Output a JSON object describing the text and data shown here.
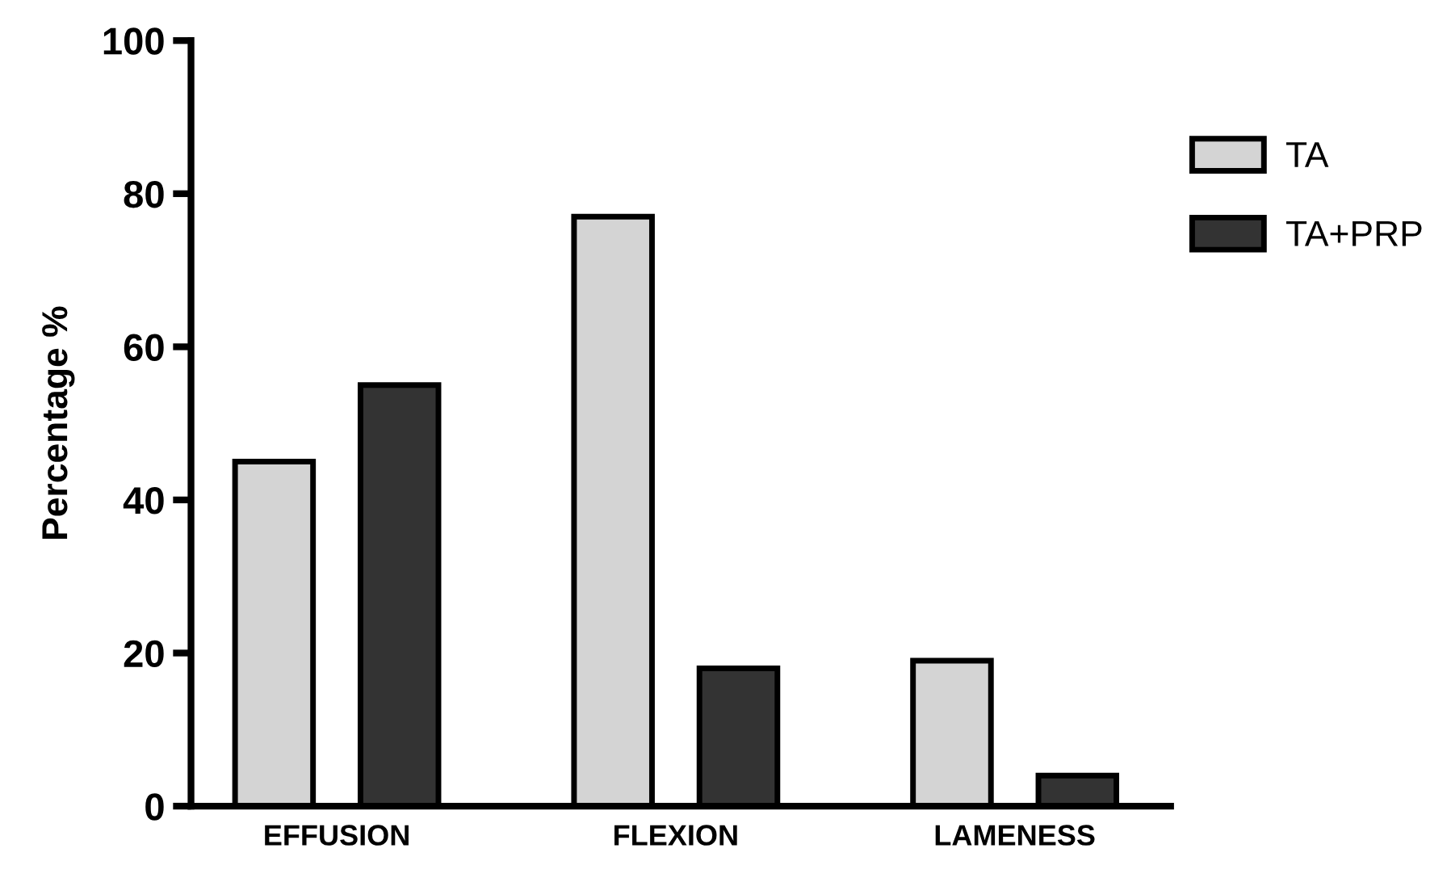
{
  "chart_data": {
    "type": "bar",
    "ylabel": "Percentage %",
    "categories": [
      "EFFUSION",
      "FLEXION",
      "LAMENESS"
    ],
    "series": [
      {
        "name": "TA",
        "color": "#d4d4d4",
        "values": [
          45,
          77,
          19
        ]
      },
      {
        "name": "TA+PRP",
        "color": "#333333",
        "values": [
          55,
          18,
          4
        ]
      }
    ],
    "ylim": [
      0,
      100
    ],
    "yticks": [
      0,
      20,
      40,
      60,
      80,
      100
    ],
    "grid": false,
    "legend": "top right"
  }
}
